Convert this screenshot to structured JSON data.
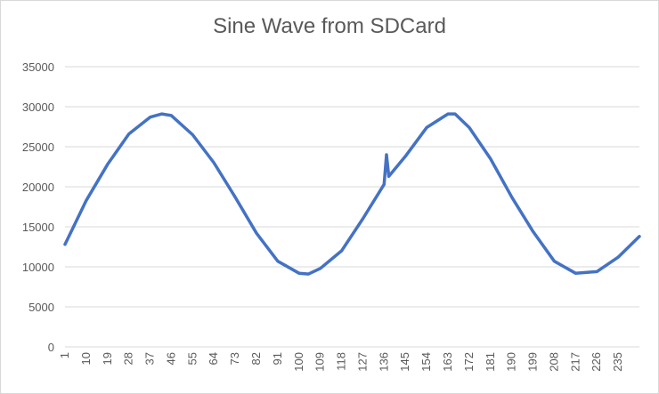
{
  "chart_data": {
    "type": "line",
    "title": "Sine Wave from SDCard",
    "xlabel": "",
    "ylabel": "",
    "ylim": [
      0,
      35000
    ],
    "yticks": [
      0,
      5000,
      10000,
      15000,
      20000,
      25000,
      30000,
      35000
    ],
    "yticklabels": [
      "0",
      "5000",
      "10000",
      "15000",
      "20000",
      "25000",
      "30000",
      "35000"
    ],
    "xlim": [
      1,
      244
    ],
    "xticks": [
      1,
      10,
      19,
      28,
      37,
      46,
      55,
      64,
      73,
      82,
      91,
      100,
      109,
      118,
      127,
      136,
      145,
      154,
      163,
      172,
      181,
      190,
      199,
      208,
      217,
      226,
      235
    ],
    "xticklabels": [
      "1",
      "10",
      "19",
      "28",
      "37",
      "46",
      "55",
      "64",
      "73",
      "82",
      "91",
      "100",
      "109",
      "118",
      "127",
      "136",
      "145",
      "154",
      "163",
      "172",
      "181",
      "190",
      "199",
      "208",
      "217",
      "226",
      "235"
    ],
    "grid": true,
    "legend": "none",
    "line_color": "#4472c4",
    "series": [
      {
        "x": [
          1,
          10,
          19,
          28,
          37,
          42,
          46,
          55,
          64,
          73,
          82,
          91,
          100,
          104,
          109,
          118,
          127,
          136,
          137,
          138,
          145,
          154,
          163,
          166,
          172,
          181,
          190,
          199,
          208,
          217,
          226,
          235,
          244
        ],
        "y": [
          12800,
          18300,
          22800,
          26600,
          28700,
          29100,
          28900,
          26500,
          23000,
          18700,
          14200,
          10700,
          9200,
          9100,
          9800,
          12000,
          16000,
          20300,
          24000,
          21300,
          23800,
          27400,
          29100,
          29100,
          27400,
          23500,
          18700,
          14400,
          10700,
          9200,
          9400,
          11200,
          13800
        ]
      }
    ]
  }
}
